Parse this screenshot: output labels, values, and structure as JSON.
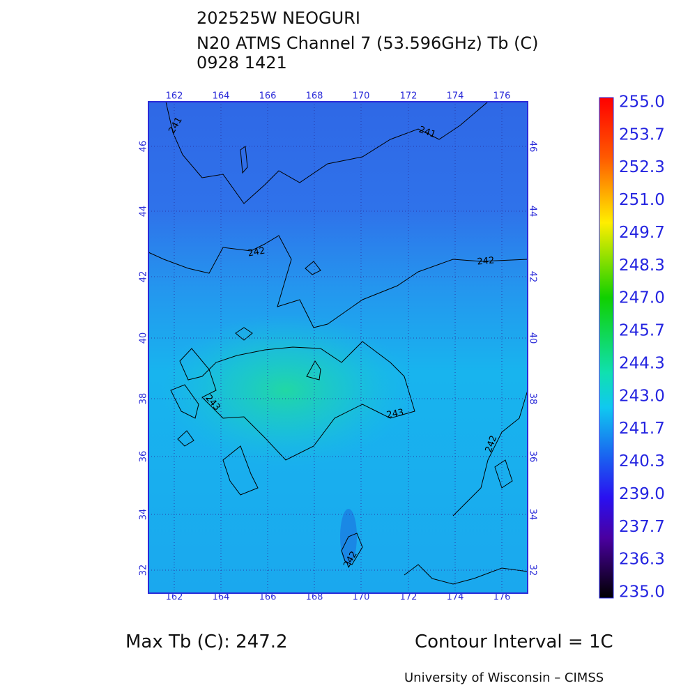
{
  "header": {
    "lines": [
      "202525W NEOGURI",
      "N20 ATMS Channel 7 (53.596GHz) Tb (C)",
      "0928 1421"
    ]
  },
  "map": {
    "lon_labels": [
      "162",
      "164",
      "166",
      "168",
      "170",
      "172",
      "174",
      "176"
    ],
    "lat_labels": [
      "46",
      "44",
      "42",
      "40",
      "38",
      "36",
      "34",
      "32"
    ],
    "contour_labels": [
      "241",
      "241",
      "242",
      "242",
      "243",
      "243",
      "242",
      "242"
    ]
  },
  "colorbar": {
    "labels": [
      "255.0",
      "253.7",
      "252.3",
      "251.0",
      "249.7",
      "248.3",
      "247.0",
      "245.7",
      "244.3",
      "243.0",
      "241.7",
      "240.3",
      "239.0",
      "237.7",
      "236.3",
      "235.0"
    ]
  },
  "footer": {
    "max_tb": "Max Tb (C): 247.2",
    "contour_interval": "Contour Interval = 1C",
    "credit": "University of Wisconsin – CIMSS"
  }
}
